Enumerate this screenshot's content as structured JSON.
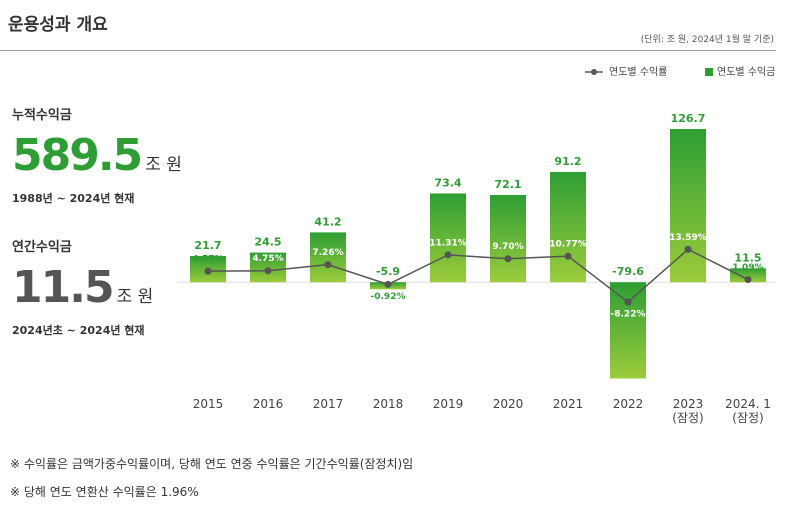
{
  "header": {
    "title": "운용성과 개요",
    "unit_note": "(단위: 조 원, 2024년 1월 말 기준)"
  },
  "summary": [
    {
      "label": "누적수익금",
      "value": 589.5,
      "unit": "조 원",
      "period": "1988년 ~ 2024년 현재",
      "color": "#2e9e34"
    },
    {
      "label": "연간수익금",
      "value": 11.5,
      "unit": "조 원",
      "period": "2024년초 ~ 2024년 현재",
      "color": "#555555"
    }
  ],
  "chart_data": {
    "type": "bar",
    "categories": [
      "2015",
      "2016",
      "2017",
      "2018",
      "2019",
      "2020",
      "2021",
      "2022",
      "2023\n(잠정)",
      "2024. 1\n(잠정)"
    ],
    "series": [
      {
        "name": "연도별 수익금",
        "type": "bar",
        "color": "#2e9e34",
        "values": [
          21.7,
          24.5,
          41.2,
          -5.9,
          73.4,
          72.1,
          91.2,
          -79.6,
          126.7,
          11.5
        ]
      },
      {
        "name": "연도별 수익률",
        "type": "line",
        "axis": "y2",
        "color": "#555555",
        "values": [
          4.57,
          4.75,
          7.26,
          -0.92,
          11.31,
          9.7,
          10.77,
          -8.22,
          13.59,
          1.09
        ],
        "value_labels": [
          "4.57%",
          "4.75%",
          "7.26%",
          "-0.92%",
          "11.31%",
          "9.70%",
          "10.77%",
          "-8.22%",
          "13.59%",
          "1.09%"
        ]
      }
    ],
    "ylim": [
      -85,
      130
    ],
    "y2lim": [
      -42.5,
      65
    ],
    "legend": "top-right"
  },
  "notes": [
    "※ 수익률은 금액가중수익률이며, 당해 연도 연중 수익률은 기간수익률(잠정치)임",
    "※ 당해 연도 연환산 수익률은 1.96%"
  ]
}
